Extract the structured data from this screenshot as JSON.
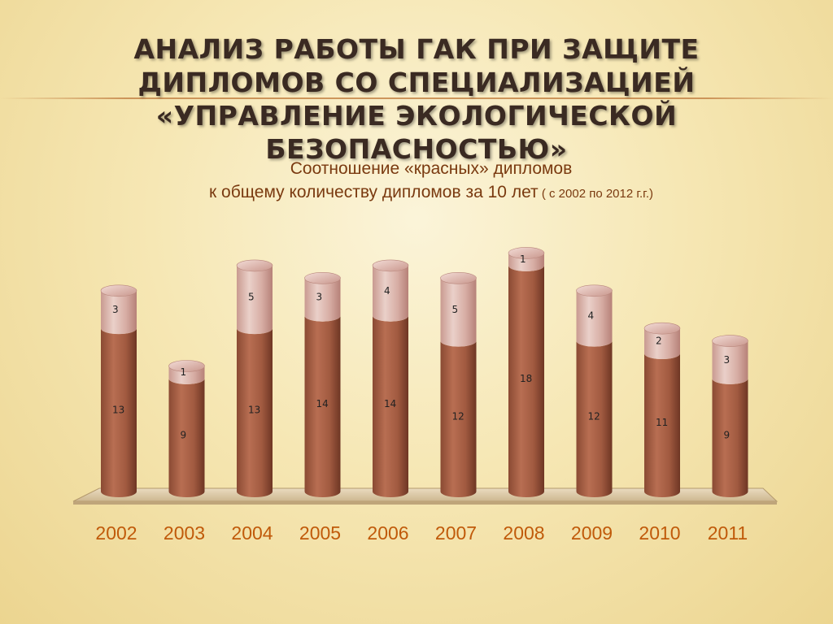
{
  "slide": {
    "title": "АНАЛИЗ РАБОТЫ ГАК ПРИ ЗАЩИТЕ ДИПЛОМОВ СО СПЕЦИАЛИЗАЦИЕЙ «УПРАВЛЕНИЕ ЭКОЛОГИЧЕСКОЙ БЕЗОПАСНОСТЬЮ»",
    "subtitle_line1": "Соотношение «красных» дипломов",
    "subtitle_line2_main": "к общему количеству дипломов за 10 лет",
    "subtitle_line2_small": " ( с 2002 по 2012 г.г.)"
  },
  "chart_data": {
    "type": "bar",
    "stacked": true,
    "shape": "3d-cylinder",
    "categories": [
      "2002",
      "2003",
      "2004",
      "2005",
      "2006",
      "2007",
      "2008",
      "2009",
      "2010",
      "2011"
    ],
    "series": [
      {
        "values": [
          13,
          9,
          13,
          14,
          14,
          12,
          18,
          12,
          11,
          9
        ],
        "color": "#a65f45"
      },
      {
        "values": [
          3,
          1,
          5,
          3,
          4,
          5,
          1,
          4,
          2,
          3
        ],
        "color": "#d9aea5"
      }
    ],
    "ylim": [
      0,
      19
    ],
    "grid": false,
    "legend": "none",
    "category_label_color": "#c05a0a"
  }
}
